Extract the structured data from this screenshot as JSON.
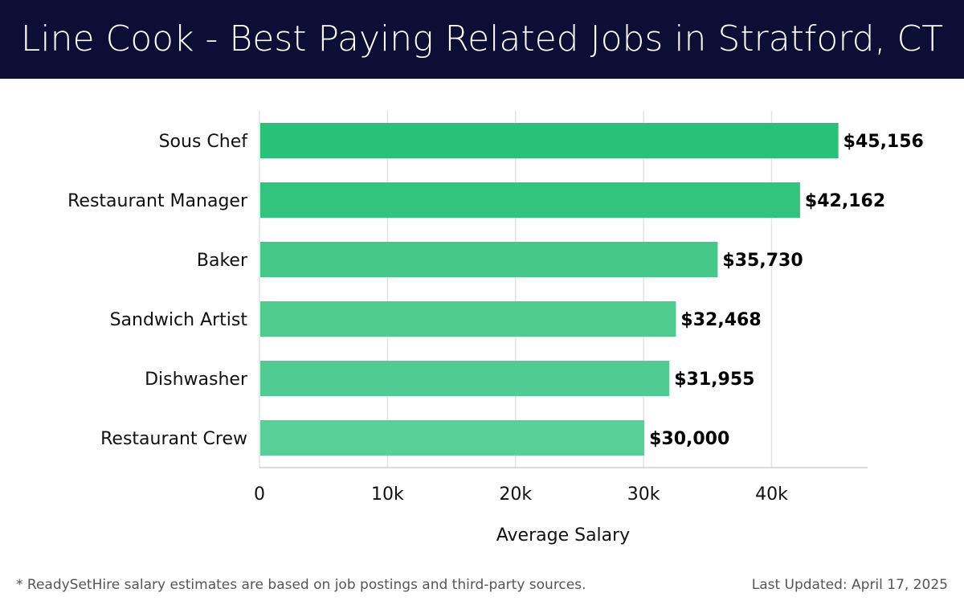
{
  "header": {
    "title": "Line Cook - Best Paying Related Jobs in Stratford, CT"
  },
  "chart_data": {
    "type": "bar",
    "orientation": "horizontal",
    "categories": [
      "Sous Chef",
      "Restaurant Manager",
      "Baker",
      "Sandwich Artist",
      "Dishwasher",
      "Restaurant Crew"
    ],
    "values": [
      45156,
      42162,
      35730,
      32468,
      31955,
      30000
    ],
    "value_labels": [
      "$45,156",
      "$42,162",
      "$35,730",
      "$32,468",
      "$31,955",
      "$30,000"
    ],
    "xlabel": "Average Salary",
    "ylabel": "",
    "xlim": [
      0,
      47500
    ],
    "xticks": [
      0,
      10000,
      20000,
      30000,
      40000
    ],
    "xtick_labels": [
      "0",
      "10k",
      "20k",
      "30k",
      "40k"
    ],
    "grid": "vertical",
    "bar_colors": [
      "#29c178",
      "#31c47d",
      "#46c88a",
      "#4fcb8f",
      "#50cb91",
      "#58cf96"
    ]
  },
  "footer": {
    "note": "* ReadySetHire salary estimates are based on job postings and third-party sources.",
    "updated": "Last Updated: April 17, 2025"
  }
}
